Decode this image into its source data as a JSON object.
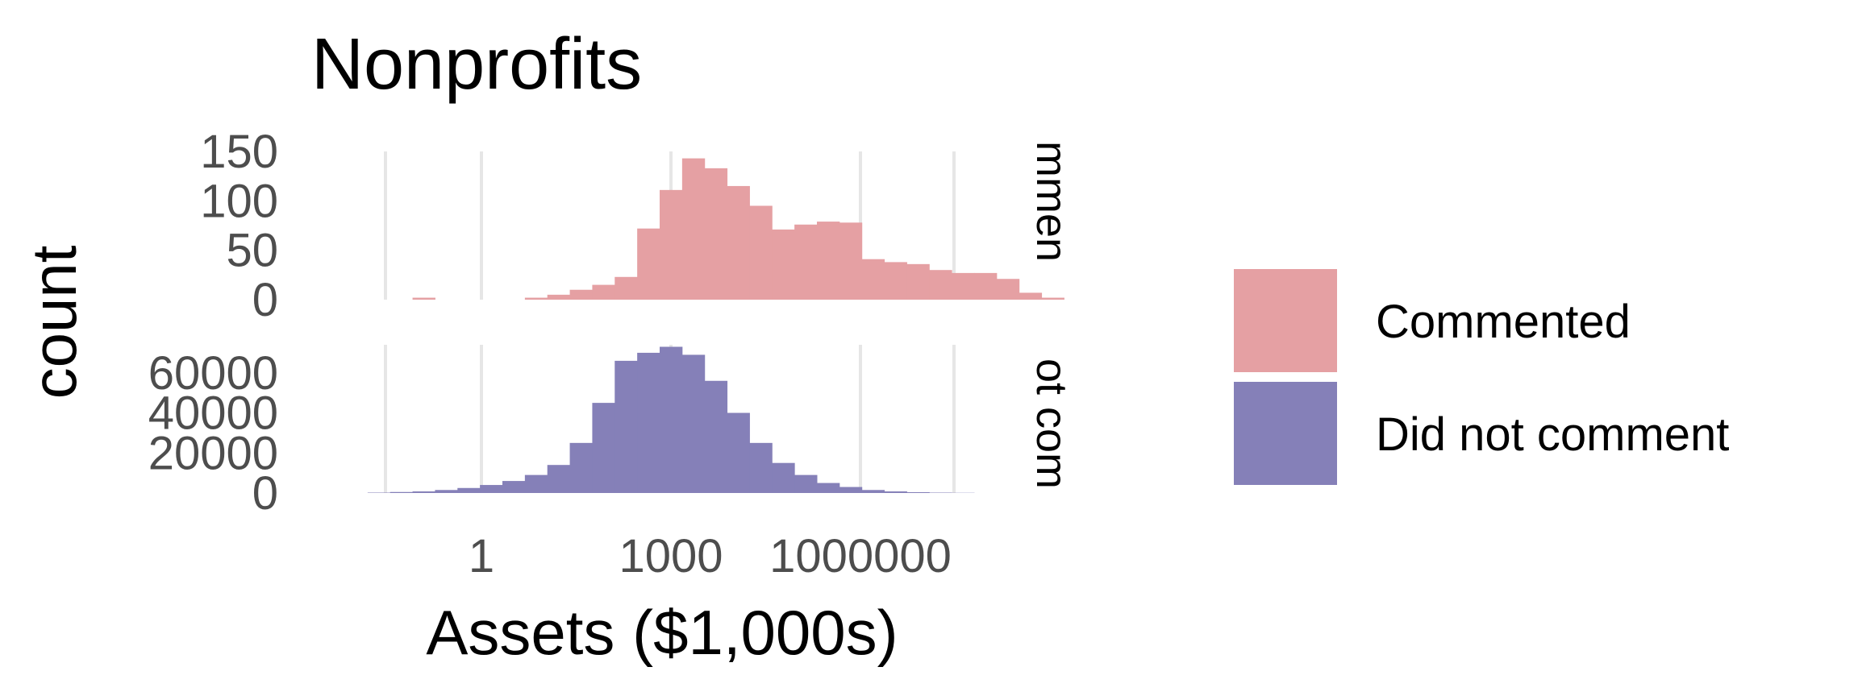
{
  "chart_data": {
    "type": "bar",
    "title": "Nonprofits",
    "xlabel": "Assets ($1,000s)",
    "ylabel": "count",
    "x_scale": "log10",
    "x_ticks": [
      1,
      1000,
      1000000
    ],
    "x_tick_labels": [
      "1",
      "1000",
      "1000000"
    ],
    "grid": true,
    "legend_position": "right",
    "legend_title": "",
    "panels": [
      {
        "name": "Commented",
        "strip_label": "mmen",
        "color": "#e5a0a3",
        "y_ticks": [
          0,
          50,
          100,
          150
        ],
        "y_tick_labels": [
          "0",
          "50",
          "100",
          "150"
        ],
        "ylim": [
          0,
          150
        ],
        "bins": [
          [
            -1.0,
            -0.8,
            2
          ],
          [
            -0.8,
            -0.6,
            0
          ],
          [
            -0.6,
            -0.4,
            0
          ],
          [
            -0.4,
            -0.2,
            0
          ],
          [
            -0.2,
            0.0,
            0
          ],
          [
            0.0,
            0.2,
            2
          ],
          [
            0.2,
            0.4,
            5
          ],
          [
            0.4,
            0.6,
            10
          ],
          [
            0.6,
            0.8,
            15
          ],
          [
            0.8,
            1.0,
            23
          ],
          [
            1.0,
            1.2,
            72
          ],
          [
            1.2,
            1.4,
            111
          ],
          [
            1.4,
            1.6,
            143
          ],
          [
            1.6,
            1.8,
            133
          ],
          [
            1.8,
            2.0,
            115
          ],
          [
            2.0,
            2.2,
            95
          ],
          [
            2.2,
            2.4,
            71
          ],
          [
            2.4,
            2.6,
            76
          ],
          [
            2.6,
            2.8,
            79
          ],
          [
            2.8,
            3.0,
            78
          ],
          [
            3.0,
            3.2,
            41
          ],
          [
            3.2,
            3.4,
            38
          ],
          [
            3.4,
            3.6,
            36
          ],
          [
            3.6,
            3.8,
            30
          ],
          [
            3.8,
            4.0,
            27
          ],
          [
            4.0,
            4.2,
            27
          ],
          [
            4.2,
            4.4,
            21
          ],
          [
            4.4,
            4.6,
            7
          ],
          [
            4.6,
            4.8,
            2
          ]
        ]
      },
      {
        "name": "Did not comment",
        "strip_label": "ot com",
        "color": "#8580b8",
        "y_ticks": [
          0,
          20000,
          40000,
          60000
        ],
        "y_tick_labels": [
          "0",
          "20000",
          "40000",
          "60000"
        ],
        "ylim": [
          0,
          74000
        ],
        "bins": [
          [
            -1.4,
            -1.2,
            200
          ],
          [
            -1.2,
            -1.0,
            500
          ],
          [
            -1.0,
            -0.8,
            800
          ],
          [
            -0.8,
            -0.6,
            1500
          ],
          [
            -0.6,
            -0.4,
            2500
          ],
          [
            -0.4,
            -0.2,
            4000
          ],
          [
            -0.2,
            0.0,
            6000
          ],
          [
            0.0,
            0.2,
            9000
          ],
          [
            0.2,
            0.4,
            14000
          ],
          [
            0.4,
            0.6,
            25000
          ],
          [
            0.6,
            0.8,
            45000
          ],
          [
            0.8,
            1.0,
            66000
          ],
          [
            1.0,
            1.2,
            70000
          ],
          [
            1.2,
            1.4,
            73000
          ],
          [
            1.4,
            1.6,
            69000
          ],
          [
            1.6,
            1.8,
            56000
          ],
          [
            1.8,
            2.0,
            40000
          ],
          [
            2.0,
            2.2,
            25000
          ],
          [
            2.2,
            2.4,
            15000
          ],
          [
            2.4,
            2.6,
            9000
          ],
          [
            2.6,
            2.8,
            5000
          ],
          [
            2.8,
            3.0,
            3000
          ],
          [
            3.0,
            3.2,
            1500
          ],
          [
            3.2,
            3.4,
            800
          ],
          [
            3.4,
            3.6,
            400
          ],
          [
            3.6,
            3.8,
            200
          ],
          [
            3.8,
            4.0,
            100
          ]
        ]
      }
    ]
  }
}
